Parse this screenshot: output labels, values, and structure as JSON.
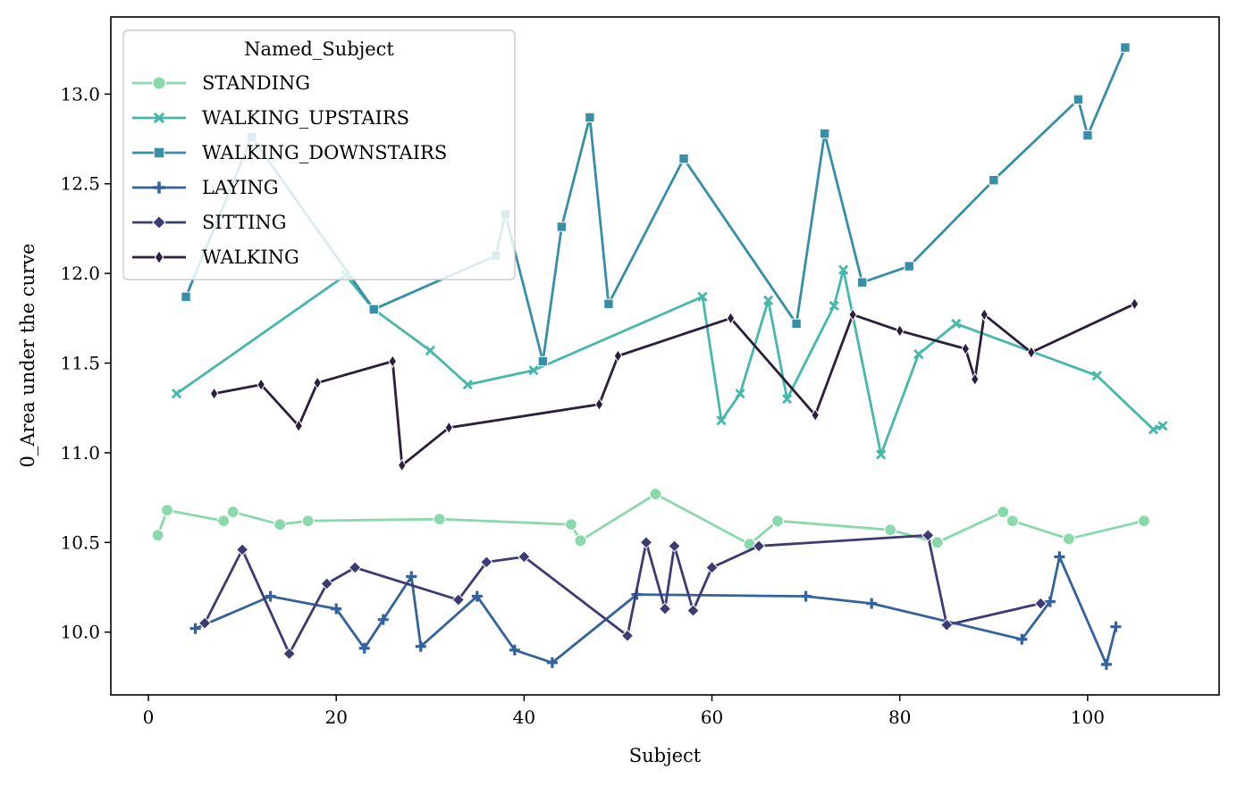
{
  "chart_data": {
    "type": "line",
    "title": "",
    "xlabel": "Subject",
    "ylabel": "0_Area under the curve",
    "xlim": [
      -4,
      114
    ],
    "ylim": [
      9.65,
      13.43
    ],
    "xticks": [
      0,
      20,
      40,
      60,
      80,
      100
    ],
    "yticks": [
      10.0,
      10.5,
      11.0,
      11.5,
      12.0,
      12.5,
      13.0
    ],
    "xtick_labels": [
      "0",
      "20",
      "40",
      "60",
      "80",
      "100"
    ],
    "ytick_labels": [
      "10.0",
      "10.5",
      "11.0",
      "11.5",
      "12.0",
      "12.5",
      "13.0"
    ],
    "grid": false,
    "legend": {
      "title": "Named_Subject",
      "placement": "top-left"
    },
    "series": [
      {
        "name": "STANDING",
        "color": "#8ad9ab",
        "marker": "circle",
        "points": [
          [
            1,
            10.54
          ],
          [
            2,
            10.68
          ],
          [
            8,
            10.62
          ],
          [
            9,
            10.67
          ],
          [
            14,
            10.6
          ],
          [
            17,
            10.62
          ],
          [
            31,
            10.63
          ],
          [
            45,
            10.6
          ],
          [
            46,
            10.51
          ],
          [
            54,
            10.77
          ],
          [
            64,
            10.49
          ],
          [
            67,
            10.62
          ],
          [
            79,
            10.57
          ],
          [
            84,
            10.5
          ],
          [
            91,
            10.67
          ],
          [
            92,
            10.62
          ],
          [
            98,
            10.52
          ],
          [
            106,
            10.62
          ]
        ]
      },
      {
        "name": "WALKING_UPSTAIRS",
        "color": "#46b8ab",
        "marker": "x",
        "points": [
          [
            3,
            11.33
          ],
          [
            21,
            11.99
          ],
          [
            24,
            11.8
          ],
          [
            30,
            11.57
          ],
          [
            34,
            11.38
          ],
          [
            41,
            11.46
          ],
          [
            59,
            11.87
          ],
          [
            61,
            11.18
          ],
          [
            63,
            11.33
          ],
          [
            66,
            11.85
          ],
          [
            68,
            11.3
          ],
          [
            73,
            11.82
          ],
          [
            74,
            12.02
          ],
          [
            78,
            10.99
          ],
          [
            82,
            11.55
          ],
          [
            86,
            11.72
          ],
          [
            101,
            11.43
          ],
          [
            107,
            11.13
          ],
          [
            108,
            11.15
          ]
        ]
      },
      {
        "name": "WALKING_DOWNSTAIRS",
        "color": "#378fa6",
        "marker": "square",
        "points": [
          [
            4,
            11.87
          ],
          [
            11,
            12.76
          ],
          [
            24,
            11.8
          ],
          [
            37,
            12.1
          ],
          [
            38,
            12.33
          ],
          [
            42,
            11.51
          ],
          [
            44,
            12.26
          ],
          [
            47,
            12.87
          ],
          [
            49,
            11.83
          ],
          [
            57,
            12.64
          ],
          [
            69,
            11.72
          ],
          [
            72,
            12.78
          ],
          [
            76,
            11.95
          ],
          [
            81,
            12.04
          ],
          [
            90,
            12.52
          ],
          [
            99,
            12.97
          ],
          [
            100,
            12.77
          ],
          [
            104,
            13.26
          ]
        ]
      },
      {
        "name": "LAYING",
        "color": "#34629b",
        "marker": "plus",
        "points": [
          [
            5,
            10.02
          ],
          [
            13,
            10.2
          ],
          [
            20,
            10.13
          ],
          [
            23,
            9.91
          ],
          [
            25,
            10.07
          ],
          [
            28,
            10.31
          ],
          [
            29,
            9.92
          ],
          [
            35,
            10.2
          ],
          [
            39,
            9.9
          ],
          [
            43,
            9.83
          ],
          [
            52,
            10.21
          ],
          [
            70,
            10.2
          ],
          [
            77,
            10.16
          ],
          [
            93,
            9.96
          ],
          [
            96,
            10.17
          ],
          [
            97,
            10.42
          ],
          [
            102,
            9.82
          ],
          [
            103,
            10.03
          ]
        ]
      },
      {
        "name": "SITTING",
        "color": "#3c3b73",
        "marker": "diamond",
        "points": [
          [
            6,
            10.05
          ],
          [
            10,
            10.46
          ],
          [
            15,
            9.88
          ],
          [
            19,
            10.27
          ],
          [
            22,
            10.36
          ],
          [
            33,
            10.18
          ],
          [
            36,
            10.39
          ],
          [
            40,
            10.42
          ],
          [
            51,
            9.98
          ],
          [
            53,
            10.5
          ],
          [
            55,
            10.13
          ],
          [
            56,
            10.48
          ],
          [
            58,
            10.12
          ],
          [
            60,
            10.36
          ],
          [
            65,
            10.48
          ],
          [
            83,
            10.54
          ],
          [
            85,
            10.04
          ],
          [
            95,
            10.16
          ]
        ]
      },
      {
        "name": "WALKING",
        "color": "#2c1e3c",
        "marker": "thin-diamond",
        "points": [
          [
            7,
            11.33
          ],
          [
            12,
            11.38
          ],
          [
            16,
            11.15
          ],
          [
            18,
            11.39
          ],
          [
            26,
            11.51
          ],
          [
            27,
            10.93
          ],
          [
            32,
            11.14
          ],
          [
            48,
            11.27
          ],
          [
            50,
            11.54
          ],
          [
            62,
            11.75
          ],
          [
            71,
            11.21
          ],
          [
            75,
            11.77
          ],
          [
            80,
            11.68
          ],
          [
            87,
            11.58
          ],
          [
            88,
            11.41
          ],
          [
            89,
            11.77
          ],
          [
            94,
            11.56
          ],
          [
            105,
            11.83
          ]
        ]
      }
    ]
  }
}
